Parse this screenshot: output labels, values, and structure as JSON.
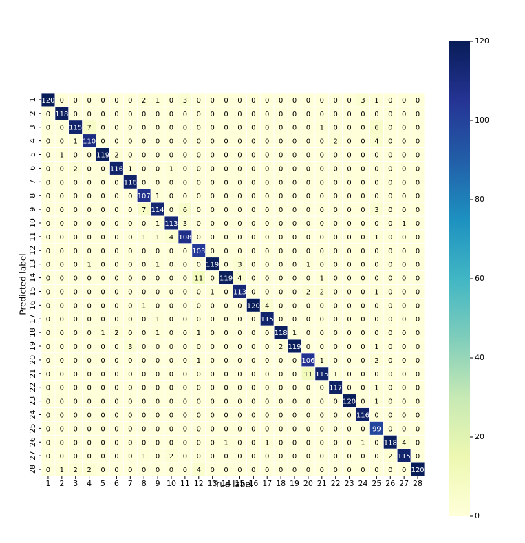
{
  "chart_data": {
    "type": "heatmap",
    "x_label": "True label",
    "y_label": "Predicted label",
    "x_categories": [
      "1",
      "2",
      "3",
      "4",
      "5",
      "6",
      "7",
      "8",
      "9",
      "10",
      "11",
      "12",
      "13",
      "14",
      "15",
      "16",
      "17",
      "18",
      "19",
      "20",
      "21",
      "22",
      "23",
      "24",
      "25",
      "26",
      "27",
      "28"
    ],
    "y_categories": [
      "1",
      "2",
      "3",
      "4",
      "5",
      "6",
      "7",
      "8",
      "9",
      "10",
      "11",
      "12",
      "13",
      "14",
      "15",
      "16",
      "17",
      "18",
      "19",
      "20",
      "21",
      "22",
      "23",
      "24",
      "25",
      "26",
      "27",
      "28"
    ],
    "values": [
      [
        120,
        0,
        0,
        0,
        0,
        0,
        0,
        2,
        1,
        0,
        3,
        0,
        0,
        0,
        0,
        0,
        0,
        0,
        0,
        0,
        0,
        0,
        0,
        3,
        1,
        0,
        0,
        0
      ],
      [
        0,
        118,
        0,
        0,
        0,
        0,
        0,
        0,
        0,
        0,
        0,
        0,
        0,
        0,
        0,
        0,
        0,
        0,
        0,
        0,
        0,
        0,
        0,
        0,
        0,
        0,
        0,
        0
      ],
      [
        0,
        0,
        115,
        7,
        0,
        0,
        0,
        0,
        0,
        0,
        0,
        0,
        0,
        0,
        0,
        0,
        0,
        0,
        0,
        0,
        1,
        0,
        0,
        0,
        6,
        0,
        0,
        0
      ],
      [
        0,
        0,
        1,
        110,
        0,
        0,
        0,
        0,
        0,
        0,
        0,
        0,
        0,
        0,
        0,
        0,
        0,
        0,
        0,
        0,
        0,
        2,
        0,
        0,
        4,
        0,
        0,
        0
      ],
      [
        0,
        1,
        0,
        0,
        119,
        2,
        0,
        0,
        0,
        0,
        0,
        0,
        0,
        0,
        0,
        0,
        0,
        0,
        0,
        0,
        0,
        0,
        0,
        0,
        0,
        0,
        0,
        0
      ],
      [
        0,
        0,
        2,
        0,
        0,
        116,
        1,
        0,
        0,
        1,
        0,
        0,
        0,
        0,
        0,
        0,
        0,
        0,
        0,
        0,
        0,
        0,
        0,
        0,
        0,
        0,
        0,
        0
      ],
      [
        0,
        0,
        0,
        0,
        0,
        0,
        116,
        0,
        0,
        0,
        0,
        0,
        0,
        0,
        0,
        0,
        0,
        0,
        0,
        0,
        0,
        0,
        0,
        0,
        0,
        0,
        0,
        0
      ],
      [
        0,
        0,
        0,
        0,
        0,
        0,
        0,
        107,
        1,
        0,
        0,
        0,
        0,
        0,
        0,
        0,
        0,
        0,
        0,
        0,
        0,
        0,
        0,
        0,
        0,
        0,
        0,
        0
      ],
      [
        0,
        0,
        0,
        0,
        0,
        0,
        0,
        7,
        114,
        0,
        6,
        0,
        0,
        0,
        0,
        0,
        0,
        0,
        0,
        0,
        0,
        0,
        0,
        0,
        3,
        0,
        0,
        0
      ],
      [
        0,
        0,
        0,
        0,
        0,
        0,
        0,
        0,
        1,
        113,
        3,
        0,
        0,
        0,
        0,
        0,
        0,
        0,
        0,
        0,
        0,
        0,
        0,
        0,
        0,
        0,
        1,
        0
      ],
      [
        0,
        0,
        0,
        0,
        0,
        0,
        0,
        1,
        1,
        4,
        108,
        0,
        0,
        0,
        0,
        0,
        0,
        0,
        0,
        0,
        0,
        0,
        0,
        0,
        1,
        0,
        0,
        0
      ],
      [
        0,
        0,
        0,
        0,
        0,
        0,
        0,
        0,
        0,
        0,
        0,
        103,
        0,
        0,
        0,
        0,
        0,
        0,
        0,
        0,
        0,
        0,
        0,
        0,
        0,
        0,
        0,
        0
      ],
      [
        0,
        0,
        0,
        1,
        0,
        0,
        0,
        0,
        1,
        0,
        0,
        0,
        119,
        0,
        3,
        0,
        0,
        0,
        0,
        1,
        0,
        0,
        0,
        0,
        0,
        0,
        0,
        0
      ],
      [
        0,
        0,
        0,
        0,
        0,
        0,
        0,
        0,
        0,
        0,
        0,
        11,
        0,
        119,
        4,
        0,
        0,
        0,
        0,
        0,
        1,
        0,
        0,
        0,
        0,
        0,
        0,
        0
      ],
      [
        0,
        0,
        0,
        0,
        0,
        0,
        0,
        0,
        0,
        0,
        0,
        0,
        1,
        0,
        113,
        0,
        0,
        0,
        0,
        2,
        2,
        0,
        0,
        0,
        1,
        0,
        0,
        0
      ],
      [
        0,
        0,
        0,
        0,
        0,
        0,
        0,
        1,
        0,
        0,
        0,
        0,
        0,
        0,
        0,
        120,
        4,
        0,
        0,
        0,
        0,
        0,
        0,
        0,
        0,
        0,
        0,
        0
      ],
      [
        0,
        0,
        0,
        0,
        0,
        0,
        0,
        0,
        1,
        0,
        0,
        0,
        0,
        0,
        0,
        0,
        115,
        0,
        0,
        0,
        0,
        0,
        0,
        0,
        0,
        0,
        0,
        0
      ],
      [
        0,
        0,
        0,
        0,
        1,
        2,
        0,
        0,
        1,
        0,
        0,
        1,
        0,
        0,
        0,
        0,
        0,
        118,
        1,
        0,
        0,
        0,
        0,
        0,
        0,
        0,
        0,
        0
      ],
      [
        0,
        0,
        0,
        0,
        0,
        0,
        3,
        0,
        0,
        0,
        0,
        0,
        0,
        0,
        0,
        0,
        0,
        2,
        119,
        0,
        0,
        0,
        0,
        0,
        1,
        0,
        0,
        0
      ],
      [
        0,
        0,
        0,
        0,
        0,
        0,
        0,
        0,
        0,
        0,
        0,
        1,
        0,
        0,
        0,
        0,
        0,
        0,
        0,
        106,
        1,
        0,
        0,
        0,
        2,
        0,
        0,
        0
      ],
      [
        0,
        0,
        0,
        0,
        0,
        0,
        0,
        0,
        0,
        0,
        0,
        0,
        0,
        0,
        0,
        0,
        0,
        0,
        0,
        11,
        115,
        1,
        0,
        0,
        0,
        0,
        0,
        0
      ],
      [
        0,
        0,
        0,
        0,
        0,
        0,
        0,
        0,
        0,
        0,
        0,
        0,
        0,
        0,
        0,
        0,
        0,
        0,
        0,
        0,
        0,
        117,
        0,
        0,
        1,
        0,
        0,
        0
      ],
      [
        0,
        0,
        0,
        0,
        0,
        0,
        0,
        0,
        0,
        0,
        0,
        0,
        0,
        0,
        0,
        0,
        0,
        0,
        0,
        0,
        0,
        0,
        120,
        0,
        1,
        0,
        0,
        0
      ],
      [
        0,
        0,
        0,
        0,
        0,
        0,
        0,
        0,
        0,
        0,
        0,
        0,
        0,
        0,
        0,
        0,
        0,
        0,
        0,
        0,
        0,
        0,
        0,
        116,
        0,
        0,
        0,
        0
      ],
      [
        0,
        0,
        0,
        0,
        0,
        0,
        0,
        0,
        0,
        0,
        0,
        0,
        0,
        0,
        0,
        0,
        0,
        0,
        0,
        0,
        0,
        0,
        0,
        0,
        99,
        0,
        0,
        0
      ],
      [
        0,
        0,
        0,
        0,
        0,
        0,
        0,
        0,
        0,
        0,
        0,
        0,
        0,
        1,
        0,
        0,
        1,
        0,
        0,
        0,
        0,
        0,
        0,
        1,
        0,
        118,
        4,
        0
      ],
      [
        0,
        0,
        0,
        0,
        0,
        0,
        0,
        1,
        0,
        2,
        0,
        0,
        0,
        0,
        0,
        0,
        0,
        0,
        0,
        0,
        0,
        0,
        0,
        0,
        0,
        2,
        115,
        0
      ],
      [
        0,
        1,
        2,
        2,
        0,
        0,
        0,
        0,
        0,
        0,
        0,
        4,
        0,
        0,
        0,
        0,
        0,
        0,
        0,
        0,
        0,
        0,
        0,
        0,
        0,
        0,
        0,
        120
      ]
    ],
    "colormap": "YlGnBu",
    "clim": [
      0,
      120
    ],
    "cticks": [
      0,
      20,
      40,
      60,
      80,
      100,
      120
    ]
  }
}
